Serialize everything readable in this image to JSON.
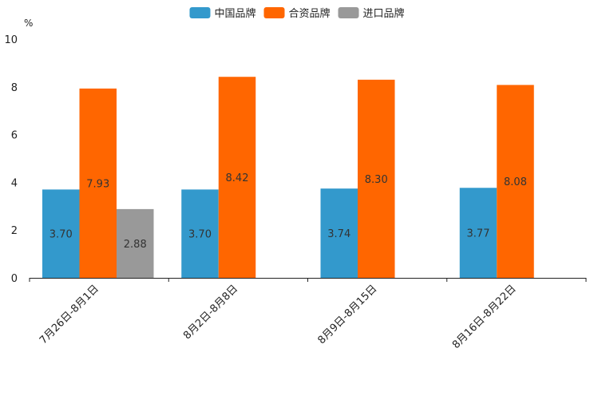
{
  "chart_data": {
    "type": "bar",
    "ylabel": "%",
    "ylim": [
      0,
      10
    ],
    "yticks": [
      0,
      2,
      4,
      6,
      8,
      10
    ],
    "categories": [
      "7月26日-8月1日",
      "8月2日-8月8日",
      "8月9日-8月15日",
      "8月16日-8月22日"
    ],
    "series": [
      {
        "name": "中国品牌",
        "color": "#3399CC",
        "values": [
          3.7,
          3.7,
          3.74,
          3.77
        ],
        "labels": [
          "3.70",
          "3.70",
          "3.74",
          "3.77"
        ]
      },
      {
        "name": "合资品牌",
        "color": "#FF6600",
        "values": [
          7.93,
          8.42,
          8.3,
          8.08
        ],
        "labels": [
          "7.93",
          "8.42",
          "8.30",
          "8.08"
        ]
      },
      {
        "name": "进口品牌",
        "color": "#999999",
        "values": [
          2.88,
          null,
          null,
          null
        ],
        "labels": [
          "2.88",
          null,
          null,
          null
        ]
      }
    ],
    "legend_position": "top-center"
  }
}
